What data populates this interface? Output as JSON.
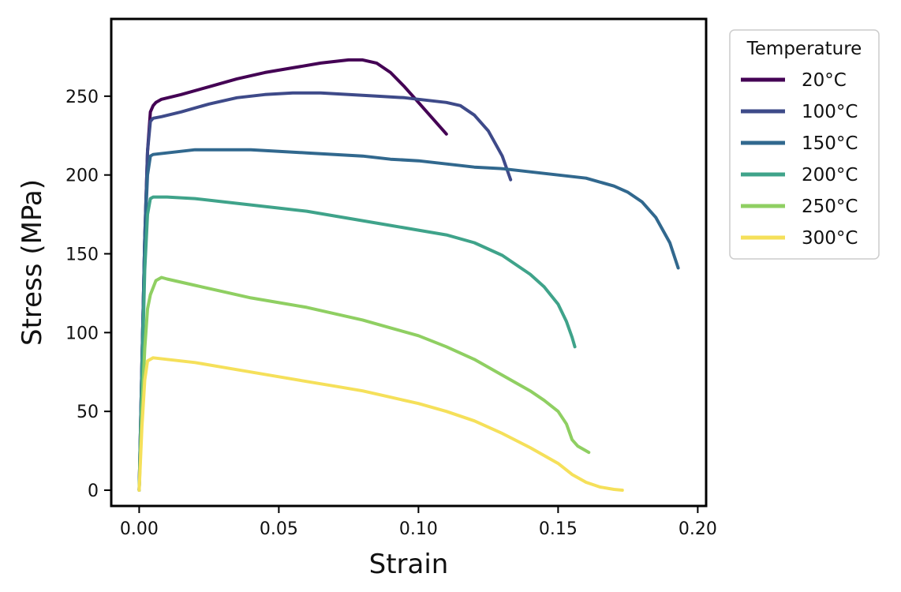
{
  "chart_data": {
    "type": "line",
    "xlabel": "Strain",
    "ylabel": "Stress (MPa)",
    "xlim": [
      -0.01,
      0.203
    ],
    "ylim": [
      -10,
      299
    ],
    "x_ticks": [
      0.0,
      0.05,
      0.1,
      0.15,
      0.2
    ],
    "x_tick_labels": [
      "0.00",
      "0.05",
      "0.10",
      "0.15",
      "0.20"
    ],
    "y_ticks": [
      0,
      50,
      100,
      150,
      200,
      250
    ],
    "y_tick_labels": [
      "0",
      "50",
      "100",
      "150",
      "200",
      "250"
    ],
    "grid": false,
    "legend": {
      "title": "Temperature",
      "placement": "upper-right-outside"
    },
    "series": [
      {
        "name": "20°C",
        "color": "#440154",
        "x": [
          0.0,
          0.001,
          0.002,
          0.003,
          0.004,
          0.005,
          0.006,
          0.008,
          0.015,
          0.025,
          0.035,
          0.045,
          0.055,
          0.065,
          0.075,
          0.08,
          0.085,
          0.09,
          0.095,
          0.1,
          0.105,
          0.11
        ],
        "y": [
          0,
          80,
          160,
          215,
          240,
          244,
          246,
          248,
          251,
          256,
          261,
          265,
          268,
          271,
          273,
          273,
          271,
          265,
          256,
          246,
          236,
          226
        ]
      },
      {
        "name": "100°C",
        "color": "#3e4a89",
        "x": [
          0.0,
          0.001,
          0.002,
          0.003,
          0.004,
          0.005,
          0.008,
          0.015,
          0.025,
          0.035,
          0.045,
          0.055,
          0.065,
          0.075,
          0.085,
          0.095,
          0.105,
          0.11,
          0.115,
          0.12,
          0.125,
          0.13,
          0.133
        ],
        "y": [
          0,
          80,
          160,
          215,
          234,
          236,
          237,
          240,
          245,
          249,
          251,
          252,
          252,
          251,
          250,
          249,
          247,
          246,
          244,
          238,
          228,
          212,
          197
        ]
      },
      {
        "name": "150°C",
        "color": "#31688e",
        "x": [
          0.0,
          0.001,
          0.002,
          0.003,
          0.004,
          0.005,
          0.01,
          0.02,
          0.03,
          0.04,
          0.05,
          0.06,
          0.07,
          0.08,
          0.09,
          0.1,
          0.11,
          0.12,
          0.13,
          0.14,
          0.15,
          0.16,
          0.17,
          0.175,
          0.18,
          0.185,
          0.19,
          0.193
        ],
        "y": [
          0,
          80,
          160,
          200,
          212,
          213,
          214,
          216,
          216,
          216,
          215,
          214,
          213,
          212,
          210,
          209,
          207,
          205,
          204,
          202,
          200,
          198,
          193,
          189,
          183,
          173,
          157,
          141
        ]
      },
      {
        "name": "200°C",
        "color": "#35b779",
        "display_color": "#3fa38a",
        "x": [
          0.0,
          0.001,
          0.002,
          0.003,
          0.004,
          0.005,
          0.01,
          0.02,
          0.03,
          0.04,
          0.05,
          0.06,
          0.07,
          0.08,
          0.09,
          0.1,
          0.11,
          0.12,
          0.13,
          0.14,
          0.145,
          0.15,
          0.153,
          0.155,
          0.156
        ],
        "y": [
          0,
          70,
          140,
          175,
          185,
          186,
          186,
          185,
          183,
          181,
          179,
          177,
          174,
          171,
          168,
          165,
          162,
          157,
          149,
          137,
          129,
          118,
          107,
          97,
          91
        ]
      },
      {
        "name": "250°C",
        "color": "#90d743",
        "display_color": "#8fcf62",
        "x": [
          0.0,
          0.001,
          0.002,
          0.003,
          0.004,
          0.006,
          0.008,
          0.01,
          0.02,
          0.03,
          0.04,
          0.05,
          0.06,
          0.07,
          0.08,
          0.09,
          0.1,
          0.11,
          0.12,
          0.13,
          0.14,
          0.145,
          0.15,
          0.153,
          0.155,
          0.157,
          0.161
        ],
        "y": [
          0,
          50,
          90,
          115,
          124,
          133,
          135,
          134,
          130,
          126,
          122,
          119,
          116,
          112,
          108,
          103,
          98,
          91,
          83,
          73,
          63,
          57,
          50,
          42,
          32,
          28,
          24
        ]
      },
      {
        "name": "300°C",
        "color": "#fde725",
        "display_color": "#f5e05a",
        "x": [
          0.0,
          0.001,
          0.002,
          0.003,
          0.005,
          0.01,
          0.02,
          0.03,
          0.04,
          0.05,
          0.06,
          0.07,
          0.08,
          0.09,
          0.1,
          0.11,
          0.12,
          0.13,
          0.14,
          0.15,
          0.155,
          0.16,
          0.165,
          0.17,
          0.173
        ],
        "y": [
          0,
          40,
          70,
          82,
          84,
          83,
          81,
          78,
          75,
          72,
          69,
          66,
          63,
          59,
          55,
          50,
          44,
          36,
          27,
          17,
          10,
          5,
          2,
          0.5,
          0
        ]
      }
    ]
  }
}
